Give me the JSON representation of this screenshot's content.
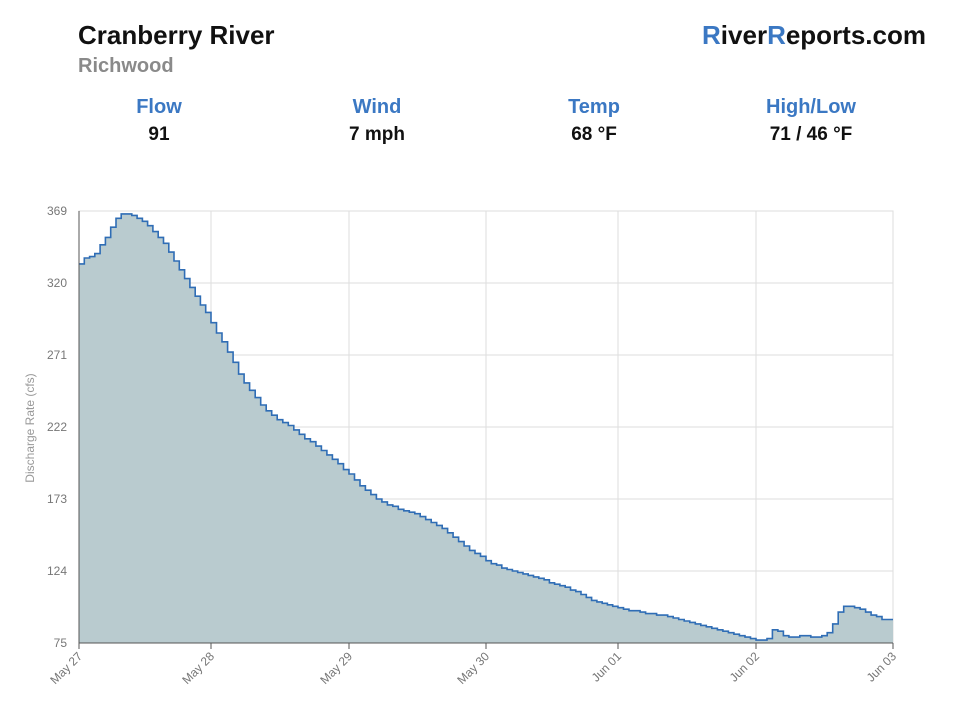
{
  "header": {
    "title": "Cranberry River",
    "subtitle": "Richwood",
    "brand_r1": "R",
    "brand_mid1": "iver",
    "brand_r2": "R",
    "brand_mid2": "eports.com"
  },
  "stats": [
    {
      "label": "Flow",
      "value": "91"
    },
    {
      "label": "Wind",
      "value": "7 mph"
    },
    {
      "label": "Temp",
      "value": "68 °F"
    },
    {
      "label": "High/Low",
      "value": "71 / 46 °F"
    }
  ],
  "colors": {
    "accent": "#3b78c3",
    "fill": "#b9cbcf",
    "line": "#2f6db5",
    "grid": "#dddddd"
  },
  "chart_data": {
    "type": "area",
    "ylabel": "Discharge Rate (cfs)",
    "ylim": [
      75,
      369
    ],
    "yticks": [
      75,
      124,
      173,
      222,
      271,
      320,
      369
    ],
    "xlim_days": [
      0,
      7
    ],
    "xticks": [
      {
        "day": 0,
        "label": "May 27"
      },
      {
        "day": 1,
        "label": "May 28"
      },
      {
        "day": 2,
        "label": "May 29"
      },
      {
        "day": 3,
        "label": "May 30"
      },
      {
        "day": 4,
        "label": "Jun 01"
      },
      {
        "day": 5,
        "label": "Jun 02"
      },
      {
        "day": 6,
        "label": "Jun 03"
      }
    ],
    "grid": true,
    "series": [
      {
        "x_days": [
          0.0,
          0.04,
          0.08,
          0.12,
          0.16,
          0.2,
          0.24,
          0.28,
          0.32,
          0.36,
          0.4,
          0.44,
          0.48,
          0.52,
          0.56,
          0.6,
          0.64,
          0.68,
          0.72,
          0.76,
          0.8,
          0.84,
          0.88,
          0.92,
          0.96,
          1.0,
          1.04,
          1.08,
          1.12,
          1.16,
          1.2,
          1.24,
          1.28,
          1.32,
          1.36,
          1.4,
          1.44,
          1.48,
          1.52,
          1.56,
          1.6,
          1.64,
          1.68,
          1.72,
          1.76,
          1.8,
          1.84,
          1.88,
          1.92,
          1.96,
          2.0,
          2.04,
          2.08,
          2.12,
          2.16,
          2.2,
          2.24,
          2.28,
          2.32,
          2.36,
          2.4,
          2.44,
          2.48,
          2.52,
          2.56,
          2.6,
          2.64,
          2.68,
          2.72,
          2.76,
          2.8,
          2.84,
          2.88,
          2.92,
          2.96,
          3.0,
          3.04,
          3.08,
          3.12,
          3.16,
          3.2,
          3.24,
          3.28,
          3.32,
          3.36,
          3.4,
          3.44,
          3.48,
          3.52,
          3.56,
          3.6,
          3.64,
          3.68,
          3.72,
          3.76,
          3.8,
          3.84,
          3.88,
          3.92,
          3.96,
          4.0,
          4.04,
          4.08,
          4.12,
          4.16,
          4.2,
          4.24,
          4.28,
          4.32,
          4.36,
          4.4,
          4.44,
          4.48,
          4.52,
          4.56,
          4.6,
          4.64,
          4.68,
          4.72,
          4.76,
          4.8,
          4.84,
          4.88,
          4.92,
          4.96,
          5.0,
          5.04,
          5.08,
          5.12,
          5.16,
          5.2,
          5.24,
          5.28,
          5.32,
          5.36,
          5.4,
          5.44,
          5.48,
          5.52,
          5.56,
          5.6,
          5.64,
          5.68,
          5.72,
          5.76,
          5.8,
          5.84,
          5.88,
          5.92,
          5.96
        ],
        "y": [
          333,
          337,
          338,
          340,
          346,
          351,
          358,
          364,
          367,
          367,
          366,
          364,
          362,
          359,
          355,
          351,
          347,
          341,
          335,
          329,
          323,
          317,
          311,
          305,
          300,
          293,
          286,
          280,
          273,
          266,
          258,
          252,
          247,
          242,
          237,
          233,
          230,
          227,
          225,
          223,
          220,
          217,
          214,
          212,
          209,
          206,
          203,
          200,
          197,
          193,
          190,
          186,
          182,
          179,
          176,
          173,
          171,
          169,
          168,
          166,
          165,
          164,
          163,
          161,
          159,
          157,
          155,
          153,
          150,
          147,
          144,
          141,
          138,
          136,
          134,
          131,
          129,
          128,
          126,
          125,
          124,
          123,
          122,
          121,
          120,
          119,
          118,
          116,
          115,
          114,
          113,
          111,
          110,
          108,
          106,
          104,
          103,
          102,
          101,
          100,
          99,
          98,
          97,
          97,
          96,
          95,
          95,
          94,
          94,
          93,
          92,
          91,
          90,
          89,
          88,
          87,
          86,
          85,
          84,
          83,
          82,
          81,
          80,
          79,
          78,
          77,
          77,
          78,
          84,
          83,
          80,
          79,
          79,
          80,
          80,
          79,
          79,
          80,
          82,
          88,
          96,
          100,
          100,
          99,
          98,
          96,
          94,
          93,
          91,
          91
        ]
      }
    ]
  }
}
